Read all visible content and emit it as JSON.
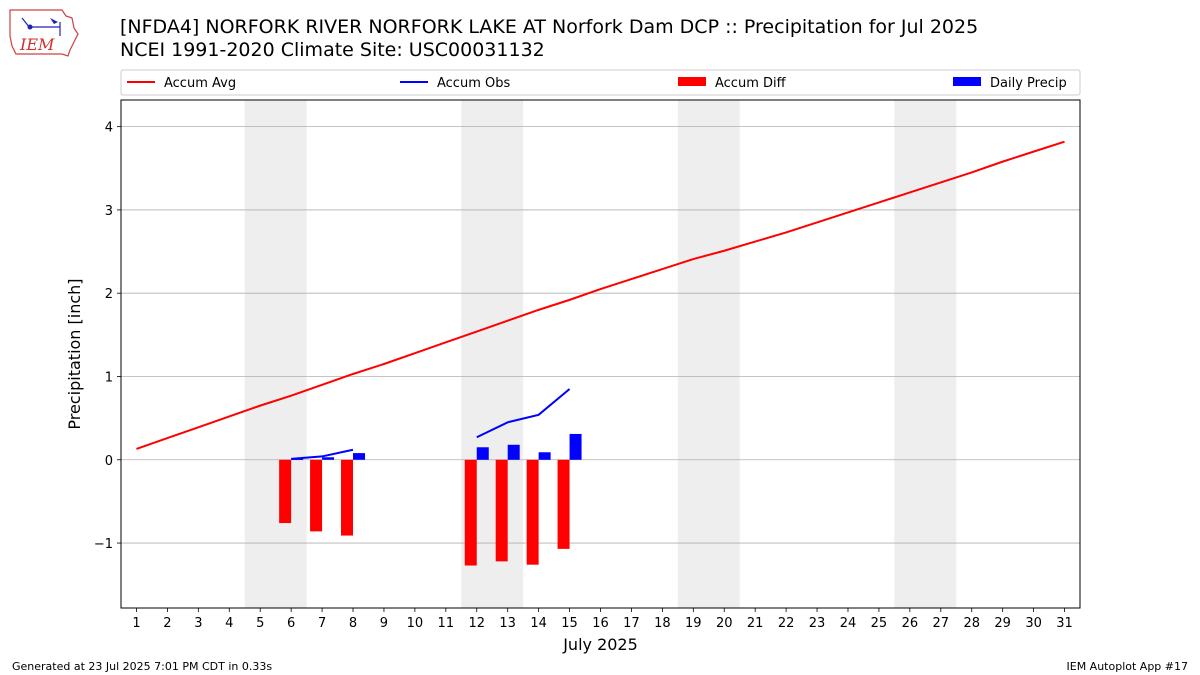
{
  "title_line1": "[NFDA4] NORFORK RIVER NORFORK LAKE  AT Norfork Dam DCP :: Precipitation for Jul 2025",
  "title_line2": "NCEI 1991-2020 Climate Site: USC00031132",
  "logo_text": "IEM",
  "footer_left": "Generated at 23 Jul 2025 7:01 PM CDT in 0.33s",
  "footer_right": "IEM Autoplot App #17",
  "colors": {
    "avg": "#ff0000",
    "obs": "#0000ff",
    "diff": "#ff0000",
    "daily": "#0000ff",
    "weekend": "#eeeeee",
    "grid": "#b0b0b0"
  },
  "chart_data": {
    "type": "bar",
    "xlabel": "July 2025",
    "ylabel": "Precipitation [inch]",
    "xlim": [
      0.5,
      31.5
    ],
    "ylim": [
      -1.78,
      4.32
    ],
    "yticks": [
      -1,
      0,
      1,
      2,
      3,
      4
    ],
    "ytick_labels": [
      "−1",
      "0",
      "1",
      "2",
      "3",
      "4"
    ],
    "xticks": [
      1,
      2,
      3,
      4,
      5,
      6,
      7,
      8,
      9,
      10,
      11,
      12,
      13,
      14,
      15,
      16,
      17,
      18,
      19,
      20,
      21,
      22,
      23,
      24,
      25,
      26,
      27,
      28,
      29,
      30,
      31
    ],
    "grid": true,
    "legend_placement": "top",
    "weekend_spans": [
      [
        4.5,
        6.5
      ],
      [
        11.5,
        13.5
      ],
      [
        18.5,
        20.5
      ],
      [
        25.5,
        27.5
      ]
    ],
    "legend": [
      "Accum Avg",
      "Accum Obs",
      "Accum Diff",
      "Daily Precip"
    ],
    "series": [
      {
        "name": "Accum Avg",
        "kind": "line",
        "x": [
          1,
          2,
          3,
          4,
          5,
          6,
          7,
          8,
          9,
          10,
          11,
          12,
          13,
          14,
          15,
          16,
          17,
          18,
          19,
          20,
          21,
          22,
          23,
          24,
          25,
          26,
          27,
          28,
          29,
          30,
          31
        ],
        "values": [
          0.13,
          0.26,
          0.39,
          0.52,
          0.65,
          0.77,
          0.9,
          1.03,
          1.15,
          1.28,
          1.41,
          1.54,
          1.67,
          1.8,
          1.92,
          2.05,
          2.17,
          2.29,
          2.41,
          2.51,
          2.62,
          2.73,
          2.85,
          2.97,
          3.09,
          3.21,
          3.33,
          3.45,
          3.58,
          3.7,
          3.82
        ]
      },
      {
        "name": "Accum Obs",
        "kind": "line",
        "segments": [
          {
            "x": [
              6,
              7,
              8
            ],
            "values": [
              0.01,
              0.04,
              0.12
            ]
          },
          {
            "x": [
              12,
              13,
              14,
              15
            ],
            "values": [
              0.27,
              0.45,
              0.54,
              0.85
            ]
          }
        ]
      },
      {
        "name": "Accum Diff",
        "kind": "bar",
        "x": [
          6,
          7,
          8,
          12,
          13,
          14,
          15
        ],
        "values": [
          -0.76,
          -0.86,
          -0.91,
          -1.27,
          -1.22,
          -1.26,
          -1.07
        ]
      },
      {
        "name": "Daily Precip",
        "kind": "bar",
        "x": [
          6,
          7,
          8,
          12,
          13,
          14,
          15
        ],
        "values": [
          0.01,
          0.03,
          0.08,
          0.15,
          0.18,
          0.09,
          0.31
        ]
      }
    ]
  }
}
